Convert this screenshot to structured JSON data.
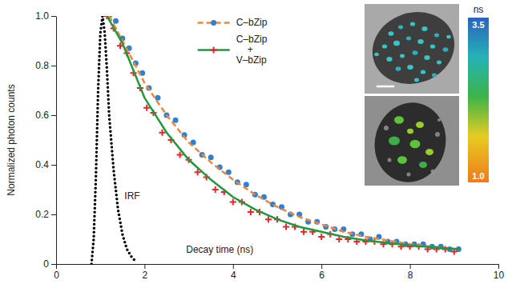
{
  "chart_data": {
    "type": "scatter",
    "x_label": "Decay time (ns)",
    "y_label": "Normalized photon counts",
    "xlim": [
      0,
      10
    ],
    "xticks": [
      0,
      2,
      4,
      6,
      8,
      10
    ],
    "ylim": [
      0,
      1
    ],
    "yticks": [
      0,
      0.2,
      0.4,
      0.6,
      0.8,
      {
        "value": 1,
        "label": "1.0"
      }
    ],
    "legend": "top",
    "series": [
      {
        "name": "C–bZip",
        "type": "scatter",
        "color": "#2f80d0",
        "marker": "circle",
        "x": [
          1.2,
          1.35,
          1.5,
          1.65,
          1.8,
          1.95,
          2.1,
          2.3,
          2.5,
          2.7,
          2.9,
          3.1,
          3.3,
          3.5,
          3.7,
          3.9,
          4.1,
          4.3,
          4.5,
          4.7,
          4.9,
          5.1,
          5.3,
          5.5,
          5.7,
          5.9,
          6.1,
          6.3,
          6.5,
          6.7,
          6.9,
          7.1,
          7.3,
          7.5,
          7.7,
          7.9,
          8.1,
          8.3,
          8.5,
          8.7,
          8.9,
          9.1
        ],
        "values": [
          1.0,
          0.98,
          0.91,
          0.87,
          0.81,
          0.77,
          0.71,
          0.67,
          0.6,
          0.58,
          0.52,
          0.49,
          0.44,
          0.43,
          0.39,
          0.37,
          0.33,
          0.32,
          0.28,
          0.27,
          0.24,
          0.23,
          0.2,
          0.2,
          0.17,
          0.17,
          0.15,
          0.14,
          0.14,
          0.12,
          0.12,
          0.1,
          0.11,
          0.09,
          0.09,
          0.08,
          0.08,
          0.08,
          0.07,
          0.07,
          0.06,
          0.06
        ],
        "fit": {
          "color": "#f0863a",
          "line_style": "dashed",
          "x": [
            1.2,
            1.5,
            2,
            2.5,
            3,
            3.5,
            4,
            4.5,
            5,
            5.5,
            6,
            6.5,
            7,
            7.5,
            8,
            8.5,
            9.1
          ],
          "values": [
            1.0,
            0.9,
            0.73,
            0.6,
            0.49,
            0.41,
            0.34,
            0.28,
            0.23,
            0.19,
            0.16,
            0.13,
            0.11,
            0.095,
            0.08,
            0.07,
            0.06
          ]
        }
      },
      {
        "name": "C–bZip + V–bZip",
        "type": "scatter",
        "color": "#e8262a",
        "marker": "plus",
        "x": [
          1.15,
          1.3,
          1.45,
          1.6,
          1.75,
          1.9,
          2.05,
          2.2,
          2.4,
          2.6,
          2.8,
          3.0,
          3.2,
          3.4,
          3.6,
          3.8,
          4.0,
          4.2,
          4.4,
          4.6,
          4.8,
          5.0,
          5.2,
          5.4,
          5.6,
          5.8,
          6.0,
          6.2,
          6.4,
          6.6,
          6.8,
          7.0,
          7.2,
          7.4,
          7.6,
          7.8,
          8.0,
          8.2,
          8.4,
          8.6,
          8.8,
          9.0
        ],
        "values": [
          1.0,
          0.95,
          0.88,
          0.85,
          0.77,
          0.71,
          0.63,
          0.61,
          0.53,
          0.5,
          0.44,
          0.42,
          0.37,
          0.35,
          0.3,
          0.29,
          0.25,
          0.25,
          0.21,
          0.21,
          0.18,
          0.18,
          0.15,
          0.15,
          0.13,
          0.13,
          0.11,
          0.12,
          0.1,
          0.1,
          0.09,
          0.09,
          0.09,
          0.08,
          0.08,
          0.07,
          0.07,
          0.07,
          0.06,
          0.06,
          0.06,
          0.05
        ],
        "fit": {
          "color": "#1e9a3c",
          "line_style": "solid",
          "x": [
            1.15,
            1.5,
            2,
            2.5,
            3,
            3.5,
            4,
            4.5,
            5,
            5.5,
            6,
            6.5,
            7,
            7.5,
            8,
            8.5,
            9.1
          ],
          "values": [
            1.0,
            0.89,
            0.67,
            0.53,
            0.42,
            0.34,
            0.27,
            0.22,
            0.18,
            0.15,
            0.13,
            0.11,
            0.095,
            0.085,
            0.075,
            0.068,
            0.06
          ]
        }
      },
      {
        "name": "IRF",
        "type": "line",
        "color": "#000000",
        "line_style": "dotted",
        "x": [
          0.8,
          0.85,
          0.9,
          0.95,
          1.0,
          1.05,
          1.1,
          1.15,
          1.2,
          1.3,
          1.4,
          1.5,
          1.6,
          1.7,
          1.8
        ],
        "values": [
          0,
          0.1,
          0.35,
          0.7,
          0.93,
          1.0,
          0.93,
          0.78,
          0.6,
          0.38,
          0.22,
          0.12,
          0.06,
          0.03,
          0.01
        ]
      }
    ],
    "colorbar": {
      "title": "ns",
      "range": [
        1,
        3.5
      ],
      "ticks": [
        {
          "value": 3.5,
          "label": "3.5"
        },
        {
          "value": 1,
          "label": "1.0"
        }
      ]
    }
  }
}
